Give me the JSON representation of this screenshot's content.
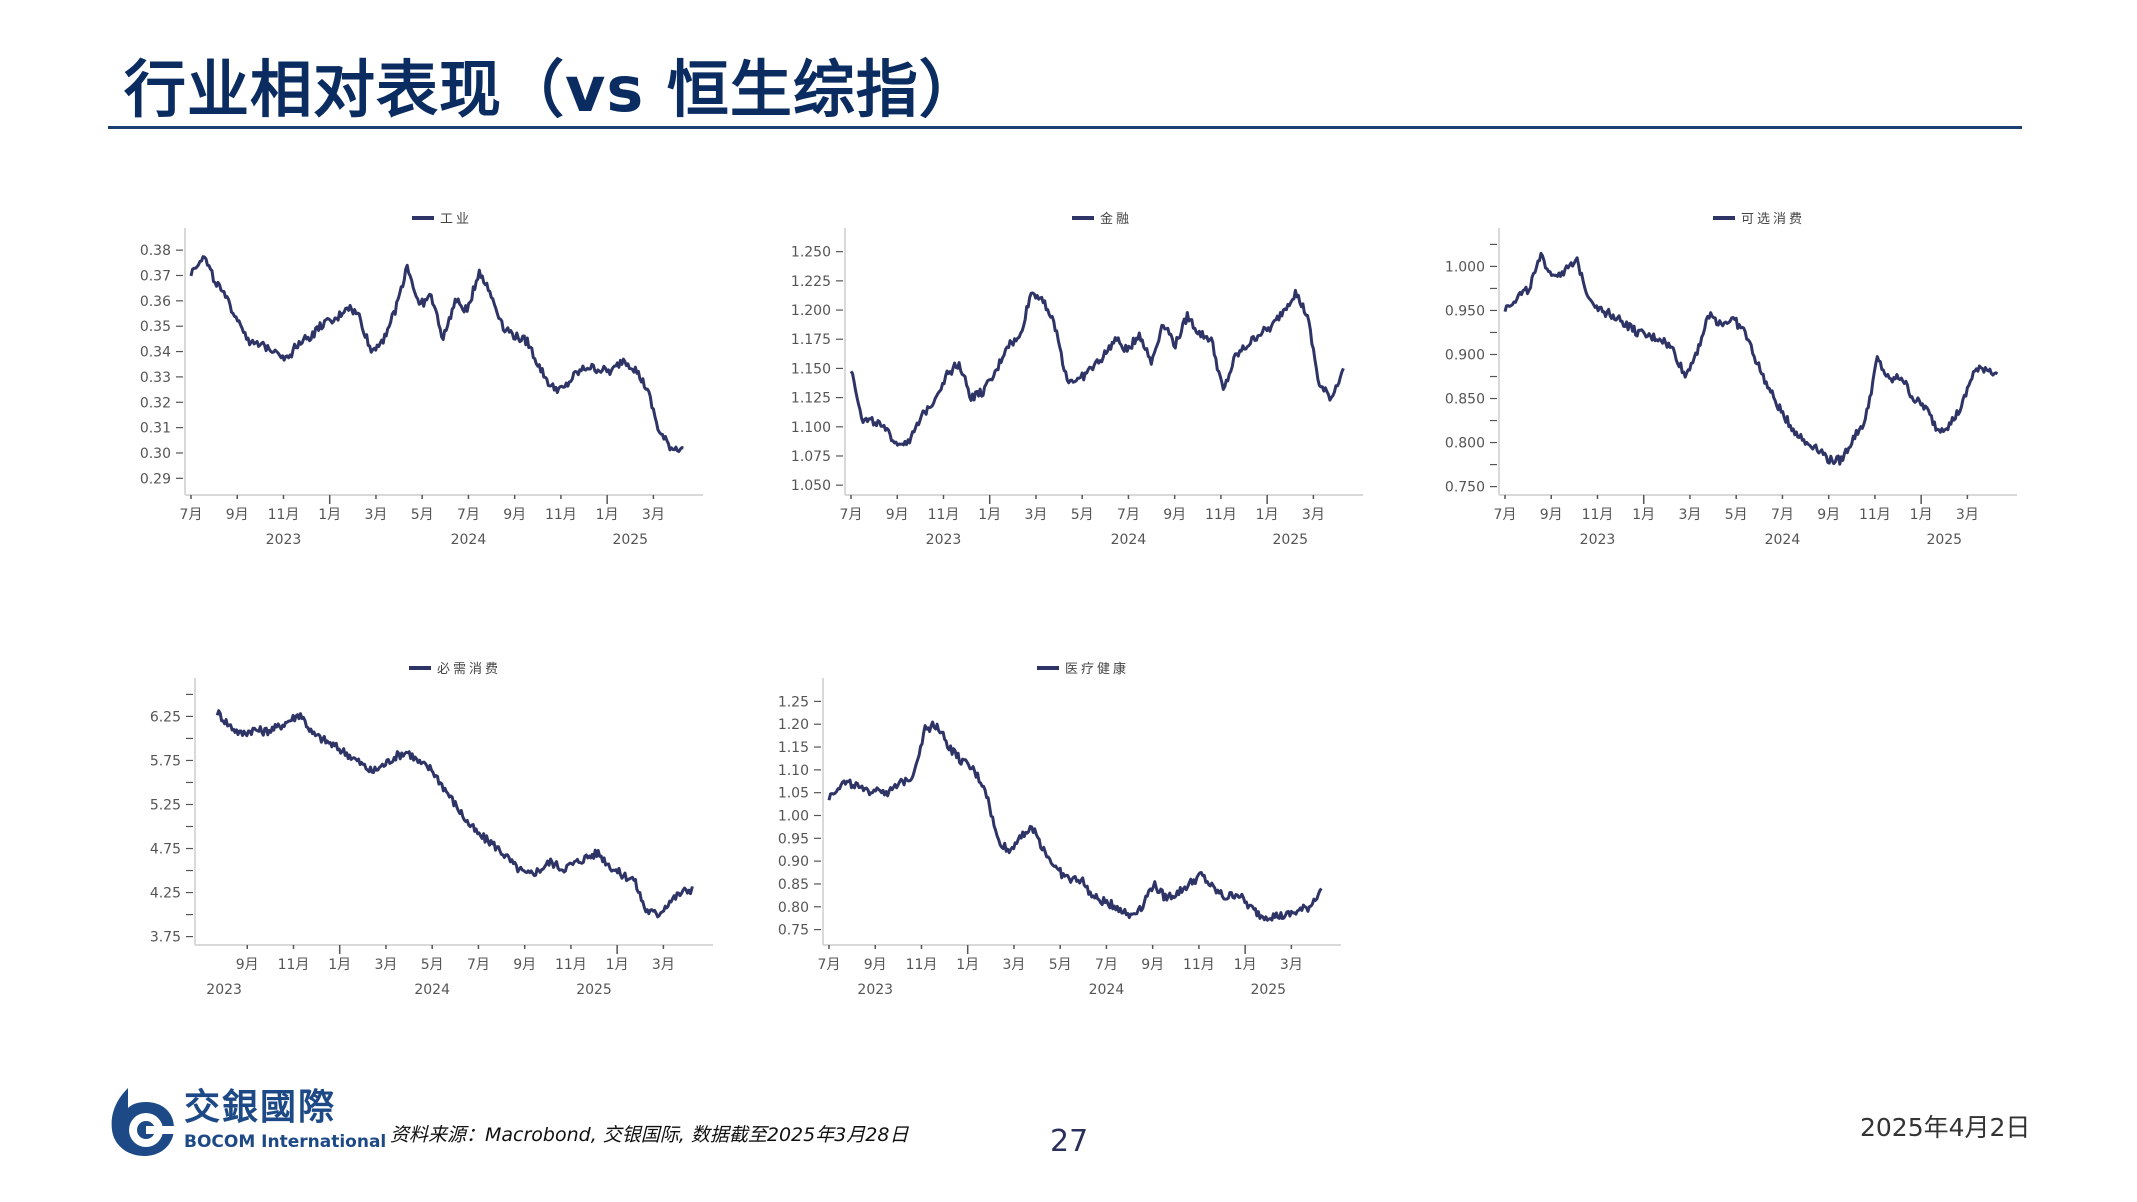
{
  "page": {
    "title": "行业相对表现（vs 恒生综指）",
    "footer": {
      "logo_cn": "交銀國際",
      "logo_en": "BOCOM International",
      "source": "资料来源：Macrobond, 交银国际, 数据截至2025年3月28日",
      "page_number": "27",
      "date": "2025年4月2日"
    },
    "colors": {
      "title": "#0b2c61",
      "rule": "#1b3f72",
      "series": "#2e3466",
      "axis": "#d9d9d9",
      "tick_text": "#555555"
    }
  },
  "chart_data": [
    {
      "id": "industrials",
      "type": "line",
      "title": "",
      "legend": "工业",
      "xlabel": "",
      "ylabel": "",
      "ylim": [
        0.285,
        0.384
      ],
      "yticks": [
        0.29,
        0.3,
        0.31,
        0.32,
        0.33,
        0.34,
        0.35,
        0.36,
        0.37,
        0.38
      ],
      "ytick_labels": [
        "0.29",
        "0.30",
        "0.31",
        "0.32",
        "0.33",
        "0.34",
        "0.35",
        "0.36",
        "0.37",
        "0.38"
      ],
      "x_month_labels": [
        "7月",
        "9月",
        "11月",
        "1月",
        "3月",
        "5月",
        "7月",
        "9月",
        "11月",
        "1月",
        "3月"
      ],
      "x_year_labels": [
        {
          "label": "2023",
          "at": 2
        },
        {
          "label": "2024",
          "at": 6
        },
        {
          "label": "2025",
          "at": 9.5
        }
      ],
      "x_start_month": 0,
      "x": [
        "2023-07",
        "2023-07",
        "2023-08",
        "2023-08",
        "2023-09",
        "2023-09",
        "2023-10",
        "2023-10",
        "2023-11",
        "2023-11",
        "2023-12",
        "2023-12",
        "2024-01",
        "2024-01",
        "2024-02",
        "2024-02",
        "2024-03",
        "2024-03",
        "2024-04",
        "2024-04",
        "2024-05",
        "2024-05",
        "2024-06",
        "2024-06",
        "2024-07",
        "2024-07",
        "2024-08",
        "2024-08",
        "2024-09",
        "2024-09",
        "2024-10",
        "2024-10",
        "2024-11",
        "2024-11",
        "2024-12",
        "2024-12",
        "2025-01",
        "2025-01",
        "2025-02",
        "2025-02",
        "2025-03",
        "2025-03"
      ],
      "series": [
        {
          "name": "工业",
          "values": [
            0.371,
            0.378,
            0.368,
            0.36,
            0.352,
            0.343,
            0.342,
            0.341,
            0.337,
            0.344,
            0.346,
            0.351,
            0.352,
            0.358,
            0.354,
            0.34,
            0.345,
            0.356,
            0.374,
            0.358,
            0.362,
            0.345,
            0.36,
            0.356,
            0.372,
            0.362,
            0.35,
            0.346,
            0.344,
            0.334,
            0.326,
            0.325,
            0.331,
            0.334,
            0.333,
            0.332,
            0.337,
            0.333,
            0.325,
            0.308,
            0.302,
            0.302
          ]
        }
      ]
    },
    {
      "id": "financials",
      "type": "line",
      "legend": "金融",
      "xlabel": "",
      "ylabel": "",
      "ylim": [
        1.045,
        1.26
      ],
      "yticks": [
        1.05,
        1.075,
        1.1,
        1.125,
        1.15,
        1.175,
        1.2,
        1.225,
        1.25
      ],
      "ytick_labels": [
        "1.050",
        "1.075",
        "1.100",
        "1.125",
        "1.150",
        "1.175",
        "1.200",
        "1.225",
        "1.250"
      ],
      "x_month_labels": [
        "7月",
        "9月",
        "11月",
        "1月",
        "3月",
        "5月",
        "7月",
        "9月",
        "11月",
        "1月",
        "3月"
      ],
      "x_year_labels": [
        {
          "label": "2023",
          "at": 2
        },
        {
          "label": "2024",
          "at": 6
        },
        {
          "label": "2025",
          "at": 9.5
        }
      ],
      "x_start_month": 0,
      "series": [
        {
          "name": "金融",
          "values": [
            1.15,
            1.105,
            1.105,
            1.095,
            1.085,
            1.09,
            1.11,
            1.125,
            1.145,
            1.155,
            1.125,
            1.13,
            1.145,
            1.17,
            1.175,
            1.215,
            1.21,
            1.185,
            1.14,
            1.14,
            1.15,
            1.16,
            1.175,
            1.165,
            1.18,
            1.155,
            1.19,
            1.17,
            1.195,
            1.18,
            1.175,
            1.13,
            1.16,
            1.17,
            1.18,
            1.185,
            1.2,
            1.215,
            1.195,
            1.135,
            1.125,
            1.15
          ]
        }
      ]
    },
    {
      "id": "consumer_discretionary",
      "type": "line",
      "legend": "可选消费",
      "xlabel": "",
      "ylabel": "",
      "ylim": [
        0.745,
        1.03
      ],
      "yticks": [
        0.75,
        0.8,
        0.85,
        0.9,
        0.95,
        1.0
      ],
      "ytick_labels": [
        "0.750",
        "0.800",
        "0.850",
        "0.900",
        "0.950",
        "1.000"
      ],
      "minor_yticks": [
        0.775,
        0.825,
        0.875,
        0.925,
        0.975,
        1.025
      ],
      "x_month_labels": [
        "7月",
        "9月",
        "11月",
        "1月",
        "3月",
        "5月",
        "7月",
        "9月",
        "11月",
        "1月",
        "3月"
      ],
      "x_year_labels": [
        {
          "label": "2023",
          "at": 2
        },
        {
          "label": "2024",
          "at": 6
        },
        {
          "label": "2025",
          "at": 9.5
        }
      ],
      "x_start_month": 0,
      "series": [
        {
          "name": "可选消费",
          "values": [
            0.952,
            0.965,
            0.975,
            1.01,
            0.99,
            0.995,
            1.005,
            0.965,
            0.95,
            0.945,
            0.935,
            0.925,
            0.92,
            0.918,
            0.905,
            0.875,
            0.905,
            0.945,
            0.935,
            0.94,
            0.925,
            0.89,
            0.86,
            0.835,
            0.815,
            0.8,
            0.795,
            0.78,
            0.78,
            0.805,
            0.825,
            0.895,
            0.87,
            0.875,
            0.85,
            0.84,
            0.815,
            0.82,
            0.84,
            0.88,
            0.885,
            0.878
          ]
        }
      ]
    },
    {
      "id": "consumer_staples",
      "type": "line",
      "legend": "必需消费",
      "xlabel": "",
      "ylabel": "",
      "ylim": [
        3.7,
        6.55
      ],
      "yticks": [
        3.75,
        4.25,
        4.75,
        5.25,
        5.75,
        6.25
      ],
      "ytick_labels": [
        "3.75",
        "4.25",
        "4.75",
        "5.25",
        "5.75",
        "6.25"
      ],
      "minor_yticks": [
        4.0,
        4.5,
        5.0,
        5.5,
        6.0,
        6.5
      ],
      "x_month_labels": [
        "9月",
        "11月",
        "1月",
        "3月",
        "5月",
        "7月",
        "9月",
        "11月",
        "1月",
        "3月"
      ],
      "x_year_labels": [
        {
          "label": "2023",
          "at": 0.5
        },
        {
          "label": "2024",
          "at": 5
        },
        {
          "label": "2025",
          "at": 8.5
        }
      ],
      "x_start_month": 1,
      "series": [
        {
          "name": "必需消费",
          "values": [
            6.3,
            6.15,
            6.05,
            6.1,
            6.08,
            6.12,
            6.2,
            6.28,
            6.05,
            5.98,
            5.9,
            5.82,
            5.72,
            5.62,
            5.7,
            5.8,
            5.85,
            5.72,
            5.65,
            5.45,
            5.25,
            5.05,
            4.9,
            4.82,
            4.7,
            4.55,
            4.45,
            4.5,
            4.6,
            4.52,
            4.58,
            4.65,
            4.7,
            4.55,
            4.45,
            4.4,
            4.05,
            4.0,
            4.15,
            4.25,
            4.3
          ]
        }
      ]
    },
    {
      "id": "healthcare",
      "type": "line",
      "legend": "医疗健康",
      "xlabel": "",
      "ylabel": "",
      "ylim": [
        0.725,
        1.275
      ],
      "yticks": [
        0.75,
        0.8,
        0.85,
        0.9,
        0.95,
        1.0,
        1.05,
        1.1,
        1.15,
        1.2,
        1.25
      ],
      "ytick_labels": [
        "0.75",
        "0.80",
        "0.85",
        "0.90",
        "0.95",
        "1.00",
        "1.05",
        "1.10",
        "1.15",
        "1.20",
        "1.25"
      ],
      "x_month_labels": [
        "7月",
        "9月",
        "11月",
        "1月",
        "3月",
        "5月",
        "7月",
        "9月",
        "11月",
        "1月",
        "3月"
      ],
      "x_year_labels": [
        {
          "label": "2023",
          "at": 1
        },
        {
          "label": "2024",
          "at": 6
        },
        {
          "label": "2025",
          "at": 9.5
        }
      ],
      "x_start_month": 0,
      "series": [
        {
          "name": "医疗健康",
          "values": [
            1.04,
            1.07,
            1.07,
            1.05,
            1.06,
            1.05,
            1.07,
            1.09,
            1.19,
            1.2,
            1.15,
            1.12,
            1.1,
            1.06,
            0.95,
            0.92,
            0.96,
            0.97,
            0.92,
            0.88,
            0.86,
            0.86,
            0.82,
            0.81,
            0.8,
            0.78,
            0.8,
            0.85,
            0.82,
            0.83,
            0.85,
            0.87,
            0.84,
            0.82,
            0.83,
            0.8,
            0.78,
            0.78,
            0.78,
            0.79,
            0.8,
            0.84
          ]
        }
      ]
    }
  ]
}
